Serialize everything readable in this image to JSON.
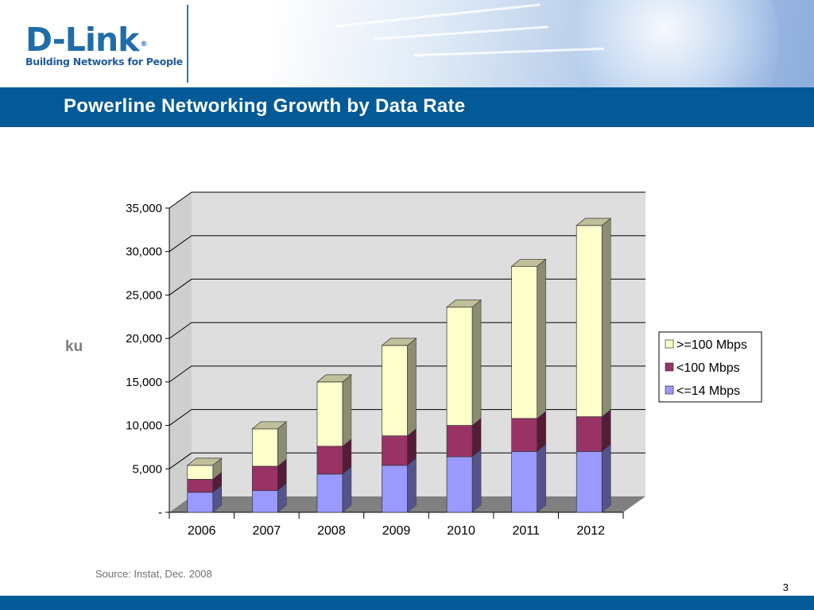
{
  "slide": {
    "logo_brand": "D-Link",
    "logo_reg": "®",
    "logo_tagline": "Building Networks for People",
    "title": "Powerline Networking Growth by Data Rate",
    "source": "Source:  Instat, Dec. 2008",
    "page_number": "3"
  },
  "colors": {
    "brand_blue": "#045a97",
    "logo_blue": "#1f6cab",
    "series_low": "#9999ff",
    "series_mid": "#993366",
    "series_high": "#ffffcc",
    "plot_back": "#dedede",
    "floor": "#808080"
  },
  "chart_data": {
    "type": "bar",
    "stacked": true,
    "three_d": true,
    "title": "",
    "xlabel": "",
    "ylabel": "ku",
    "ylim": [
      0,
      35000
    ],
    "y_ticks": [
      0,
      5000,
      10000,
      15000,
      20000,
      25000,
      30000,
      35000
    ],
    "y_tick_labels": [
      "-",
      "5,000",
      "10,000",
      "15,000",
      "20,000",
      "25,000",
      "30,000",
      "35,000"
    ],
    "categories": [
      "2006",
      "2007",
      "2008",
      "2009",
      "2010",
      "2011",
      "2012"
    ],
    "series": [
      {
        "name": "<=14 Mbps",
        "color": "#9999ff",
        "values": [
          2300,
          2500,
          4400,
          5400,
          6400,
          7000,
          7000
        ]
      },
      {
        "name": "<100 Mbps",
        "color": "#993366",
        "values": [
          1500,
          2800,
          3200,
          3400,
          3600,
          3800,
          4000
        ]
      },
      {
        "name": ">=100 Mbps",
        "color": "#ffffcc",
        "values": [
          1600,
          4300,
          7400,
          10400,
          13600,
          17500,
          22000
        ]
      }
    ],
    "legend_order": [
      ">=100 Mbps",
      "<100 Mbps",
      "<=14 Mbps"
    ],
    "legend_position": "right",
    "grid": true
  }
}
